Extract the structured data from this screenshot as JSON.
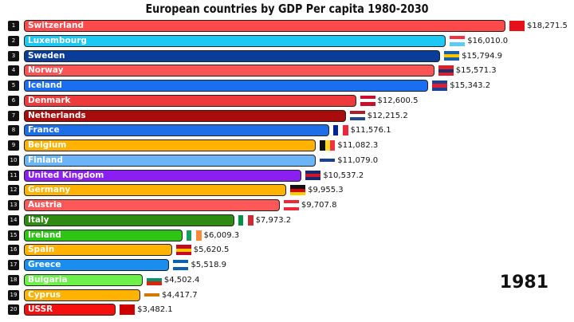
{
  "chart_data": {
    "type": "bar",
    "orientation": "horizontal",
    "title": "European countries by GDP Per capita 1980-2030",
    "year": "1981",
    "value_prefix": "$",
    "bars": [
      {
        "rank": "1",
        "name": "Switzerland",
        "value": 18271.5,
        "label": "$18,271.5",
        "color": "#fe4a4a",
        "flag": [
          "#e8111b",
          "#e8111b"
        ]
      },
      {
        "rank": "2",
        "name": "Luxembourg",
        "value": 16010.0,
        "label": "$16,010.0",
        "color": "#1ec8f4",
        "flag": [
          "#ef3340",
          "#ffffff",
          "#5ecbf0"
        ]
      },
      {
        "rank": "3",
        "name": "Sweden",
        "value": 15794.9,
        "label": "$15,794.9",
        "color": "#0a3c9a",
        "flag": [
          "#1a5ea8",
          "#f7c600",
          "#1a5ea8"
        ]
      },
      {
        "rank": "4",
        "name": "Norway",
        "value": 15571.3,
        "label": "$15,571.3",
        "color": "#f95555",
        "flag": [
          "#d8232a",
          "#1c2f6e",
          "#d8232a"
        ]
      },
      {
        "rank": "5",
        "name": "Iceland",
        "value": 15343.2,
        "label": "$15,343.2",
        "color": "#1a6ef0",
        "flag": [
          "#1a3f94",
          "#dc1e35",
          "#1a3f94"
        ]
      },
      {
        "rank": "6",
        "name": "Denmark",
        "value": 12600.5,
        "label": "$12,600.5",
        "color": "#ee3a3a",
        "flag": [
          "#c8102e",
          "#ffffff",
          "#c8102e"
        ]
      },
      {
        "rank": "7",
        "name": "Netherlands",
        "value": 12215.2,
        "label": "$12,215.2",
        "color": "#a80c0c",
        "flag": [
          "#ae1c28",
          "#ffffff",
          "#21468b"
        ]
      },
      {
        "rank": "8",
        "name": "France",
        "value": 11576.1,
        "label": "$11,576.1",
        "color": "#1e6ee8",
        "flag": [
          "#002395",
          "#ffffff",
          "#ed2939"
        ]
      },
      {
        "rank": "9",
        "name": "Belgium",
        "value": 11082.3,
        "label": "$11,082.3",
        "color": "#ffb300",
        "flag": [
          "#111111",
          "#fdda24",
          "#ef3340"
        ]
      },
      {
        "rank": "10",
        "name": "Finland",
        "value": 11079.0,
        "label": "$11,079.0",
        "color": "#6cb4f8",
        "flag": [
          "#ffffff",
          "#1a3f94",
          "#ffffff"
        ]
      },
      {
        "rank": "11",
        "name": "United Kingdom",
        "value": 10537.2,
        "label": "$10,537.2",
        "color": "#8b1ef0",
        "flag": [
          "#1a2a6c",
          "#cf142b",
          "#1a2a6c"
        ]
      },
      {
        "rank": "12",
        "name": "Germany",
        "value": 9955.3,
        "label": "$9,955.3",
        "color": "#ffb300",
        "flag": [
          "#111111",
          "#dd0000",
          "#ffce00"
        ]
      },
      {
        "rank": "13",
        "name": "Austria",
        "value": 9707.8,
        "label": "$9,707.8",
        "color": "#fe5858",
        "flag": [
          "#ed2939",
          "#ffffff",
          "#ed2939"
        ]
      },
      {
        "rank": "14",
        "name": "Italy",
        "value": 7973.2,
        "label": "$7,973.2",
        "color": "#2e8b12",
        "flag": [
          "#009246",
          "#ffffff",
          "#ce2b37"
        ]
      },
      {
        "rank": "15",
        "name": "Ireland",
        "value": 6009.3,
        "label": "$6,009.3",
        "color": "#2ec414",
        "flag": [
          "#169b62",
          "#ffffff",
          "#ff883e"
        ]
      },
      {
        "rank": "16",
        "name": "Spain",
        "value": 5620.5,
        "label": "$5,620.5",
        "color": "#ffb300",
        "flag": [
          "#c60b1e",
          "#ffc400",
          "#c60b1e"
        ]
      },
      {
        "rank": "17",
        "name": "Greece",
        "value": 5518.9,
        "label": "$5,518.9",
        "color": "#1a8ef0",
        "flag": [
          "#0d5eaf",
          "#ffffff",
          "#0d5eaf"
        ]
      },
      {
        "rank": "18",
        "name": "Bulgaria",
        "value": 4502.4,
        "label": "$4,502.4",
        "color": "#6ef04a",
        "flag": [
          "#ffffff",
          "#00966e",
          "#d62612"
        ]
      },
      {
        "rank": "19",
        "name": "Cyprus",
        "value": 4417.7,
        "label": "$4,417.7",
        "color": "#ffb300",
        "flag": [
          "#ffffff",
          "#d57800",
          "#ffffff"
        ]
      },
      {
        "rank": "20",
        "name": "USSR",
        "value": 3482.1,
        "label": "$3,482.1",
        "color": "#f51010",
        "flag": [
          "#cc0000",
          "#cc0000"
        ]
      }
    ],
    "xlim": [
      0,
      18271.5
    ],
    "grid": false
  }
}
